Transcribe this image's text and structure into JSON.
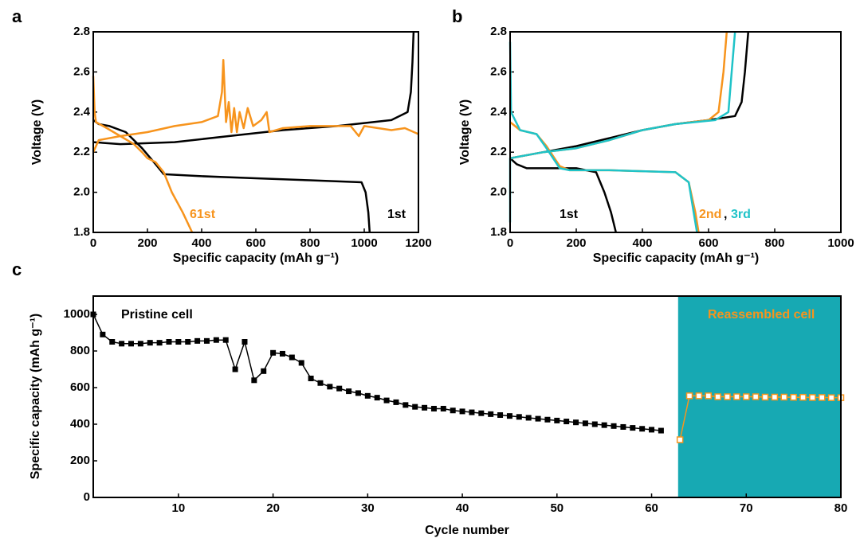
{
  "chart_data": [
    {
      "type": "line",
      "panel_label": "a",
      "xlabel": "Specific capacity (mAh g⁻¹)",
      "ylabel": "Voltage (V)",
      "xlim": [
        0,
        1200
      ],
      "ylim": [
        1.8,
        2.8
      ],
      "xticks": [
        0,
        200,
        400,
        600,
        800,
        1000,
        1200
      ],
      "yticks": [
        1.8,
        {
          "value": 2,
          "label": "2.0"
        },
        2.2,
        2.4,
        2.6,
        2.8
      ],
      "series": [
        {
          "name": "1st",
          "color": "#000000",
          "x": [
            0,
            20,
            60,
            120,
            180,
            230,
            260,
            400,
            600,
            800,
            990,
            1005,
            1015,
            1020,
            null,
            0,
            100,
            300,
            500,
            700,
            900,
            1100,
            1160,
            1172,
            1178,
            1182
          ],
          "values": [
            2.36,
            2.34,
            2.33,
            2.3,
            2.22,
            2.14,
            2.09,
            2.08,
            2.07,
            2.06,
            2.05,
            2.0,
            1.9,
            1.8,
            null,
            2.25,
            2.24,
            2.25,
            2.28,
            2.31,
            2.33,
            2.36,
            2.4,
            2.5,
            2.65,
            2.8
          ]
        },
        {
          "name": "61st",
          "color": "#f7941d",
          "x": [
            0,
            5,
            10,
            50,
            100,
            150,
            180,
            200,
            230,
            260,
            290,
            330,
            365,
            null,
            0,
            20,
            100,
            200,
            300,
            400,
            460,
            475,
            480,
            490,
            500,
            510,
            520,
            530,
            540,
            555,
            570,
            590,
            620,
            640,
            650,
            700,
            800,
            950,
            980,
            1000,
            1100,
            1150,
            1200
          ],
          "values": [
            2.58,
            2.4,
            2.35,
            2.32,
            2.28,
            2.24,
            2.2,
            2.17,
            2.15,
            2.1,
            2.0,
            1.9,
            1.8,
            null,
            2.2,
            2.26,
            2.28,
            2.3,
            2.33,
            2.35,
            2.38,
            2.5,
            2.66,
            2.35,
            2.45,
            2.3,
            2.42,
            2.3,
            2.4,
            2.32,
            2.42,
            2.33,
            2.36,
            2.4,
            2.3,
            2.32,
            2.33,
            2.33,
            2.28,
            2.33,
            2.31,
            2.32,
            2.29
          ]
        }
      ]
    },
    {
      "type": "line",
      "panel_label": "b",
      "xlabel": "Specific capacity (mAh g⁻¹)",
      "ylabel": "Voltage (V)",
      "xlim": [
        0,
        1000
      ],
      "ylim": [
        1.8,
        2.8
      ],
      "xticks": [
        0,
        200,
        400,
        600,
        800,
        1000
      ],
      "yticks": [
        1.8,
        {
          "value": 2,
          "label": "2.0"
        },
        2.2,
        2.4,
        2.6,
        2.8
      ],
      "annotation_separator": ",",
      "series": [
        {
          "name": "1st",
          "color": "#000000",
          "x": [
            0,
            20,
            50,
            200,
            260,
            285,
            305,
            320,
            null,
            0,
            100,
            200,
            300,
            400,
            500,
            600,
            680,
            700,
            710,
            720
          ],
          "values": [
            2.17,
            2.14,
            2.12,
            2.12,
            2.1,
            2.0,
            1.9,
            1.8,
            null,
            2.17,
            2.2,
            2.23,
            2.27,
            2.31,
            2.34,
            2.36,
            2.38,
            2.45,
            2.6,
            2.8
          ]
        },
        {
          "name": "2nd",
          "color": "#f7941d",
          "x": [
            0,
            30,
            80,
            110,
            150,
            180,
            300,
            500,
            540,
            560,
            570,
            null,
            0,
            100,
            200,
            300,
            400,
            500,
            600,
            630,
            645,
            655
          ],
          "values": [
            2.35,
            2.31,
            2.29,
            2.23,
            2.13,
            2.11,
            2.11,
            2.1,
            2.05,
            1.9,
            1.8,
            null,
            2.17,
            2.2,
            2.22,
            2.26,
            2.31,
            2.34,
            2.36,
            2.4,
            2.6,
            2.8
          ]
        },
        {
          "name": "3rd",
          "color": "#1fc3c8",
          "x": [
            0,
            3,
            30,
            80,
            110,
            150,
            180,
            300,
            500,
            540,
            555,
            565,
            null,
            0,
            0,
            100,
            200,
            300,
            400,
            500,
            620,
            660,
            670,
            680
          ],
          "values": [
            2.75,
            2.4,
            2.31,
            2.29,
            2.22,
            2.12,
            2.11,
            2.11,
            2.1,
            2.05,
            1.9,
            1.8,
            null,
            1.85,
            2.17,
            2.2,
            2.22,
            2.26,
            2.31,
            2.34,
            2.36,
            2.4,
            2.6,
            2.8
          ]
        }
      ]
    },
    {
      "type": "line-marker",
      "panel_label": "c",
      "xlabel": "Cycle number",
      "ylabel": "Specific capacity (mAh g⁻¹)",
      "xlim": [
        1,
        80
      ],
      "ylim": [
        0,
        1100
      ],
      "xticks": [
        10,
        20,
        30,
        40,
        50,
        60,
        70,
        80
      ],
      "yticks": [
        0,
        200,
        400,
        600,
        800,
        1000
      ],
      "shaded_xlim": [
        62.8,
        80
      ],
      "shade_color": "#17a9b3",
      "series": [
        {
          "name": "Pristine cell",
          "color": "#000000",
          "marker": "square",
          "x": [
            1,
            2,
            3,
            4,
            5,
            6,
            7,
            8,
            9,
            10,
            11,
            12,
            13,
            14,
            15,
            16,
            17,
            18,
            19,
            20,
            21,
            22,
            23,
            24,
            25,
            26,
            27,
            28,
            29,
            30,
            31,
            32,
            33,
            34,
            35,
            36,
            37,
            38,
            39,
            40,
            41,
            42,
            43,
            44,
            45,
            46,
            47,
            48,
            49,
            50,
            51,
            52,
            53,
            54,
            55,
            56,
            57,
            58,
            59,
            60,
            61
          ],
          "values": [
            1000,
            890,
            850,
            840,
            840,
            840,
            845,
            845,
            850,
            850,
            850,
            855,
            855,
            860,
            860,
            700,
            850,
            640,
            690,
            790,
            785,
            765,
            735,
            650,
            625,
            605,
            595,
            580,
            570,
            555,
            545,
            530,
            520,
            505,
            495,
            490,
            485,
            485,
            475,
            470,
            465,
            460,
            455,
            450,
            445,
            440,
            435,
            430,
            425,
            420,
            415,
            410,
            405,
            400,
            395,
            390,
            385,
            380,
            375,
            370,
            365
          ]
        },
        {
          "name": "Reassembled cell",
          "color": "#f7941d",
          "marker": "hollow-square",
          "x": [
            63,
            64,
            65,
            66,
            67,
            68,
            69,
            70,
            71,
            72,
            73,
            74,
            75,
            76,
            77,
            78,
            79,
            80
          ],
          "values": [
            315,
            555,
            555,
            555,
            550,
            550,
            550,
            550,
            550,
            548,
            548,
            548,
            547,
            547,
            546,
            546,
            545,
            545
          ]
        }
      ]
    }
  ]
}
